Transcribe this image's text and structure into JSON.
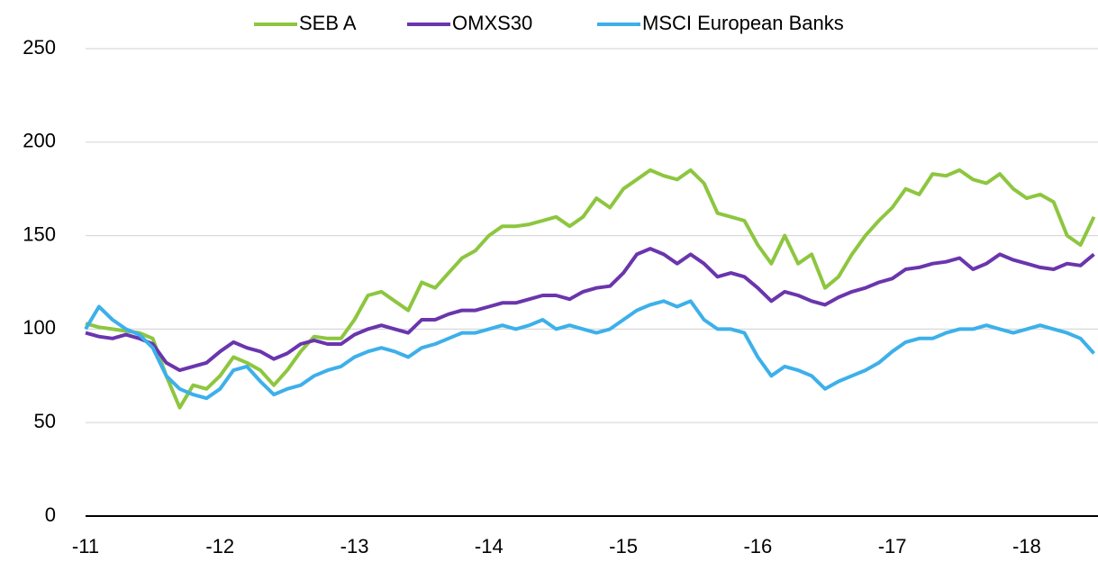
{
  "chart_data": {
    "type": "line",
    "x": [
      11,
      11.1,
      11.2,
      11.3,
      11.4,
      11.5,
      11.6,
      11.7,
      11.8,
      11.9,
      12,
      12.1,
      12.2,
      12.3,
      12.4,
      12.5,
      12.6,
      12.7,
      12.8,
      12.9,
      13,
      13.1,
      13.2,
      13.3,
      13.4,
      13.5,
      13.6,
      13.7,
      13.8,
      13.9,
      14,
      14.1,
      14.2,
      14.3,
      14.4,
      14.5,
      14.6,
      14.7,
      14.8,
      14.9,
      15,
      15.1,
      15.2,
      15.3,
      15.4,
      15.5,
      15.6,
      15.7,
      15.8,
      15.9,
      16,
      16.1,
      16.2,
      16.3,
      16.4,
      16.5,
      16.6,
      16.7,
      16.8,
      16.9,
      17,
      17.1,
      17.2,
      17.3,
      17.4,
      17.5,
      17.6,
      17.7,
      17.8,
      17.9,
      18,
      18.1,
      18.2,
      18.3,
      18.4,
      18.5
    ],
    "series": [
      {
        "name": "SEB A",
        "color": "#8dc63f",
        "values": [
          103,
          101,
          100,
          99,
          98,
          95,
          75,
          58,
          70,
          68,
          75,
          85,
          82,
          78,
          70,
          78,
          88,
          96,
          95,
          95,
          105,
          118,
          120,
          115,
          110,
          125,
          122,
          130,
          138,
          142,
          150,
          155,
          155,
          156,
          158,
          160,
          155,
          160,
          170,
          165,
          175,
          180,
          185,
          182,
          180,
          185,
          178,
          162,
          160,
          158,
          145,
          135,
          150,
          135,
          140,
          122,
          128,
          140,
          150,
          158,
          165,
          175,
          172,
          183,
          182,
          185,
          180,
          178,
          183,
          175,
          170,
          172,
          168,
          150,
          145,
          160
        ]
      },
      {
        "name": "OMXS30",
        "color": "#6a35ad",
        "values": [
          98,
          96,
          95,
          97,
          95,
          92,
          82,
          78,
          80,
          82,
          88,
          93,
          90,
          88,
          84,
          87,
          92,
          94,
          92,
          92,
          97,
          100,
          102,
          100,
          98,
          105,
          105,
          108,
          110,
          110,
          112,
          114,
          114,
          116,
          118,
          118,
          116,
          120,
          122,
          123,
          130,
          140,
          143,
          140,
          135,
          140,
          135,
          128,
          130,
          128,
          122,
          115,
          120,
          118,
          115,
          113,
          117,
          120,
          122,
          125,
          127,
          132,
          133,
          135,
          136,
          138,
          132,
          135,
          140,
          137,
          135,
          133,
          132,
          135,
          134,
          140
        ]
      },
      {
        "name": "MSCI European Banks",
        "color": "#3db0ea",
        "values": [
          100,
          112,
          105,
          100,
          97,
          90,
          75,
          68,
          65,
          63,
          68,
          78,
          80,
          72,
          65,
          68,
          70,
          75,
          78,
          80,
          85,
          88,
          90,
          88,
          85,
          90,
          92,
          95,
          98,
          98,
          100,
          102,
          100,
          102,
          105,
          100,
          102,
          100,
          98,
          100,
          105,
          110,
          113,
          115,
          112,
          115,
          105,
          100,
          100,
          98,
          85,
          75,
          80,
          78,
          75,
          68,
          72,
          75,
          78,
          82,
          88,
          93,
          95,
          95,
          98,
          100,
          100,
          102,
          100,
          98,
          100,
          102,
          100,
          98,
          95,
          87
        ]
      }
    ],
    "xlim": [
      11,
      18.53
    ],
    "xticks": [
      {
        "value": 11,
        "label": "-11"
      },
      {
        "value": 12,
        "label": "-12"
      },
      {
        "value": 13,
        "label": "-13"
      },
      {
        "value": 14,
        "label": "-14"
      },
      {
        "value": 15,
        "label": "-15"
      },
      {
        "value": 16,
        "label": "-16"
      },
      {
        "value": 17,
        "label": "-17"
      },
      {
        "value": 18,
        "label": "-18"
      }
    ],
    "ylim": [
      0,
      250
    ],
    "yticks": [
      0,
      50,
      100,
      150,
      200,
      250
    ],
    "grid": true,
    "legend": "top"
  }
}
